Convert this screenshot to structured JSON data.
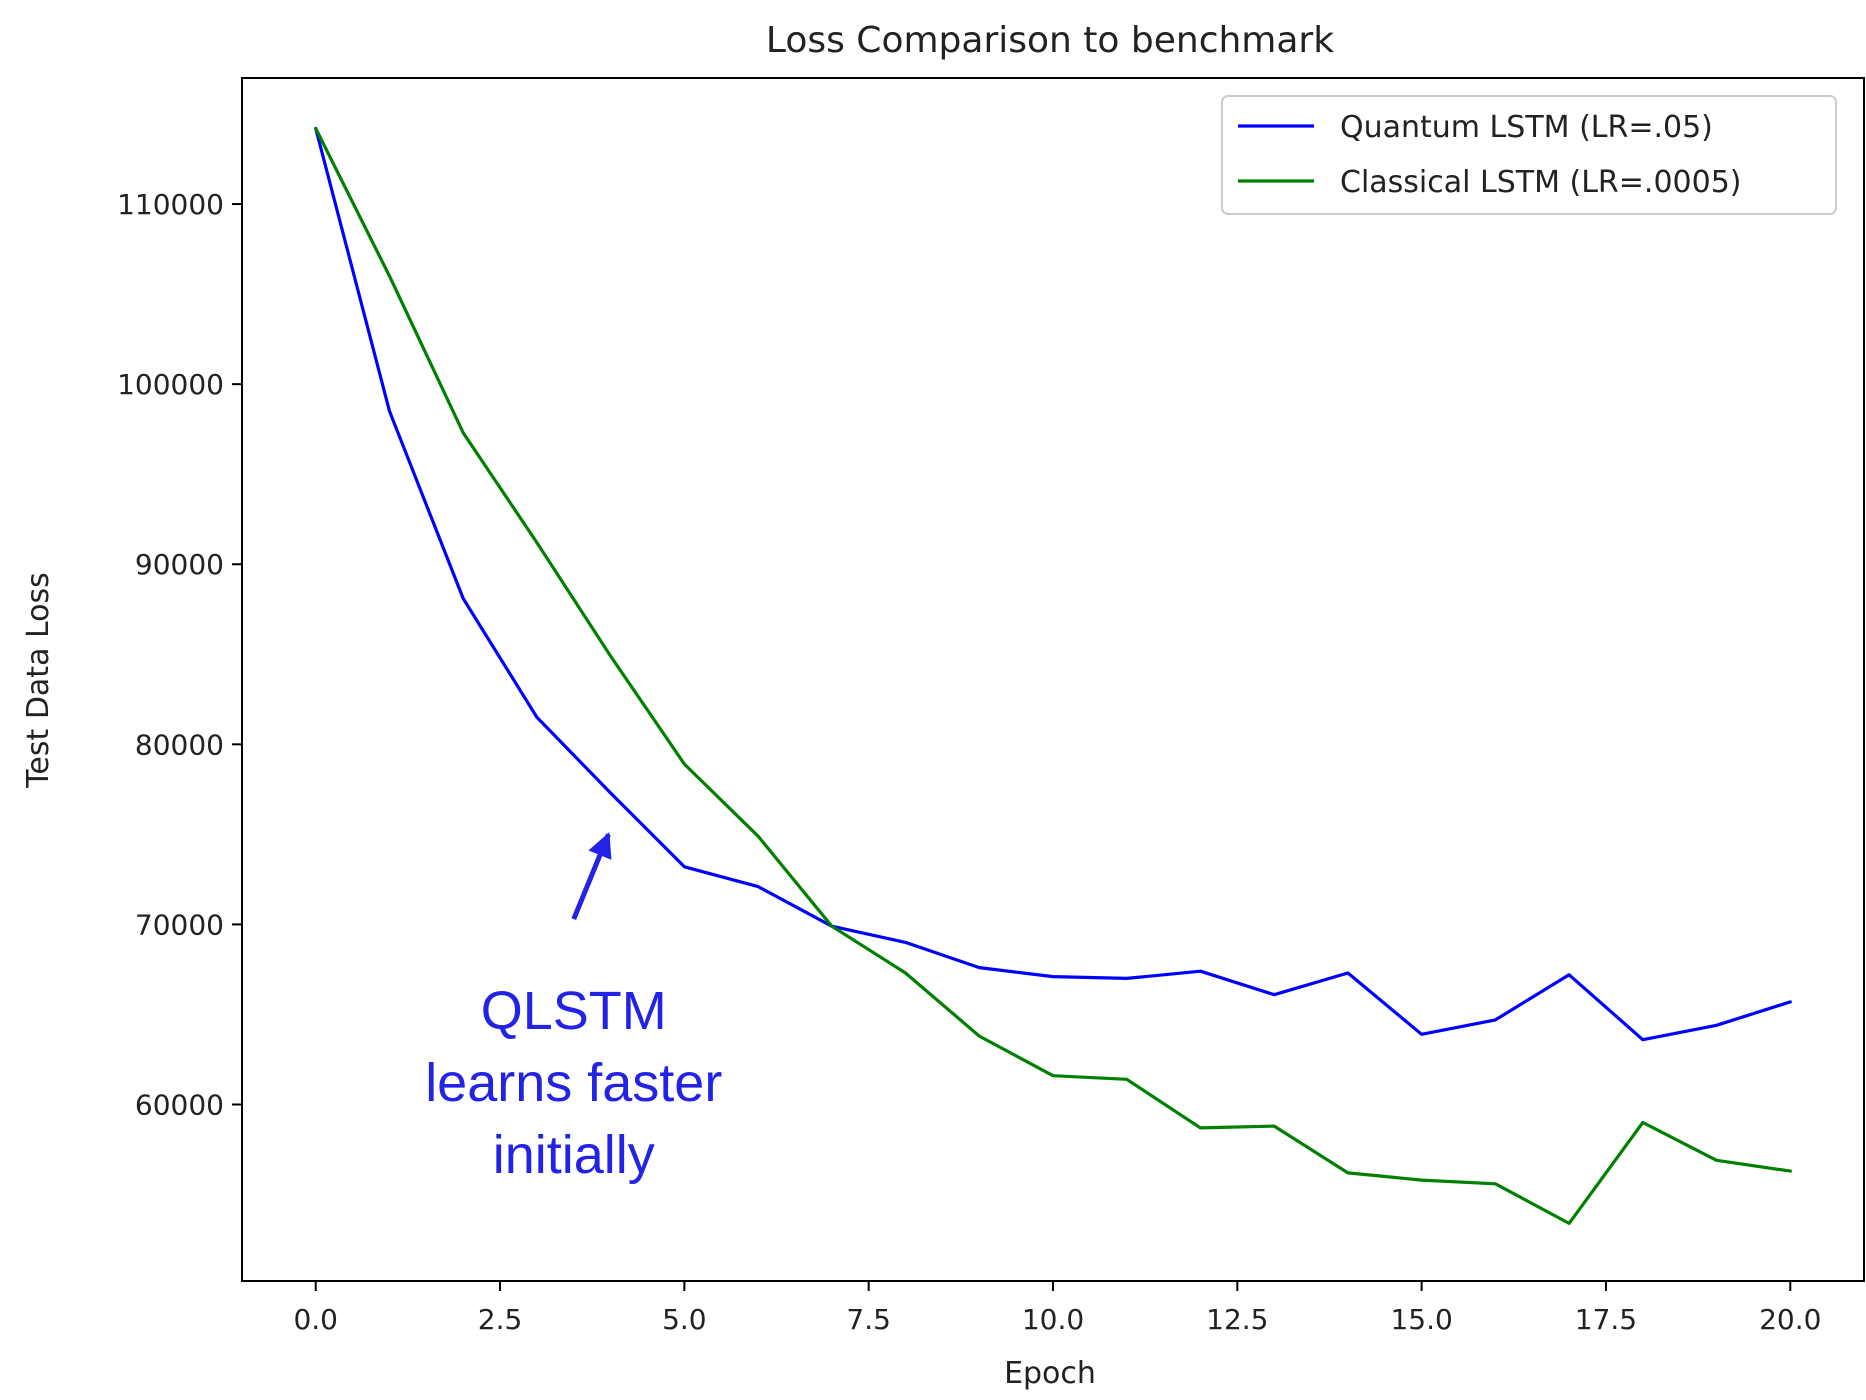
{
  "chart_data": {
    "type": "line",
    "title": "Loss Comparison to benchmark",
    "xlabel": "Epoch",
    "ylabel": "Test Data Loss",
    "xlim": [
      -1.0,
      21.0
    ],
    "ylim": [
      50200,
      117000
    ],
    "xticks": [
      0.0,
      2.5,
      5.0,
      7.5,
      10.0,
      12.5,
      15.0,
      17.5,
      20.0
    ],
    "xtick_labels": [
      "0.0",
      "2.5",
      "5.0",
      "7.5",
      "10.0",
      "12.5",
      "15.0",
      "17.5",
      "20.0"
    ],
    "yticks": [
      60000,
      70000,
      80000,
      90000,
      100000,
      110000
    ],
    "ytick_labels": [
      "60000",
      "70000",
      "80000",
      "90000",
      "100000",
      "110000"
    ],
    "grid": false,
    "legend_position": "top-right",
    "x": [
      0,
      1,
      2,
      3,
      4,
      5,
      6,
      7,
      8,
      9,
      10,
      11,
      12,
      13,
      14,
      15,
      16,
      17,
      18,
      19,
      20
    ],
    "series": [
      {
        "name": "Quantum LSTM (LR=.05)",
        "color": "#0000ff",
        "values": [
          114200,
          98500,
          88100,
          81500,
          77300,
          73200,
          72100,
          69900,
          69000,
          67600,
          67100,
          67000,
          67400,
          66100,
          67300,
          63900,
          64700,
          67200,
          63600,
          64400,
          65700
        ]
      },
      {
        "name": "Classical LSTM (LR=.0005)",
        "color": "#008000",
        "values": [
          114200,
          106000,
          97300,
          91200,
          84900,
          78900,
          74900,
          69900,
          67300,
          63800,
          61600,
          61400,
          58700,
          58800,
          56200,
          55800,
          55600,
          53400,
          59000,
          56900,
          56300
        ]
      }
    ],
    "annotations": [
      {
        "lines": [
          "QLSTM",
          "learns faster",
          "initially"
        ],
        "color": "#2323e6",
        "arrow_from": [
          3.5,
          70300
        ],
        "arrow_to": [
          3.97,
          75000
        ]
      }
    ]
  }
}
